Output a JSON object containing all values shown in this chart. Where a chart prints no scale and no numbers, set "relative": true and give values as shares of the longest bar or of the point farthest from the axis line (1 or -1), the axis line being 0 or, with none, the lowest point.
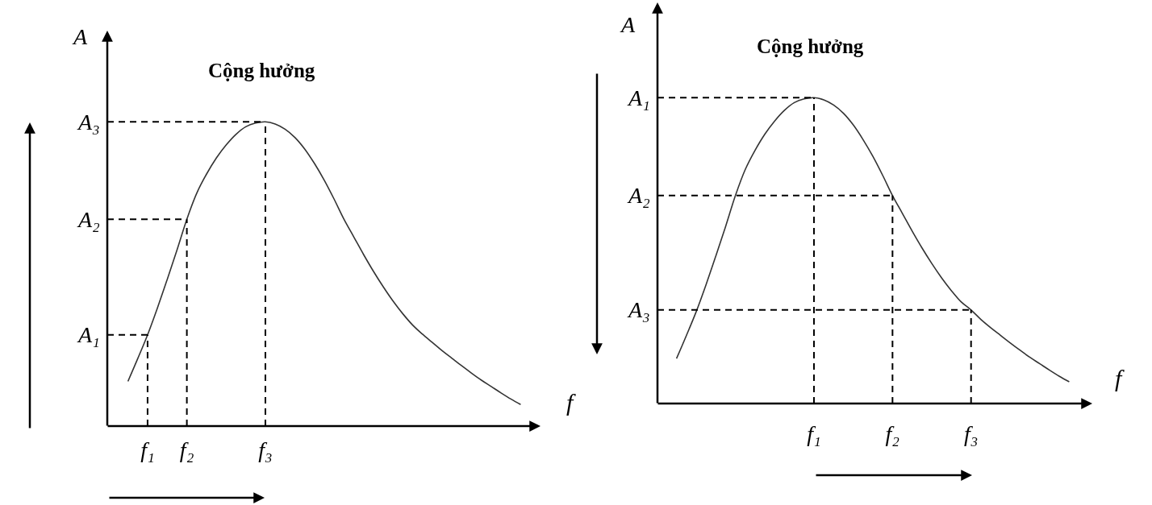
{
  "chart_data": [
    {
      "type": "line",
      "relative": true,
      "xlabel": "f",
      "ylabel": "A",
      "color": "#333333",
      "categories": [
        null,
        null,
        "f₁",
        null,
        null,
        null,
        "f₂",
        null,
        null,
        null,
        null,
        null,
        null,
        null,
        "f₃",
        null,
        null,
        null,
        null,
        null,
        null,
        null,
        null,
        null,
        null,
        null,
        null,
        null,
        null,
        null,
        null,
        null,
        null,
        null,
        null,
        null,
        null,
        null,
        null,
        null,
        null
      ],
      "values": [
        0.147,
        0.222,
        0.3,
        0.388,
        0.482,
        0.579,
        0.68,
        0.765,
        0.828,
        0.881,
        0.924,
        0.959,
        0.984,
        0.996,
        1,
        0.993,
        0.976,
        0.949,
        0.911,
        0.863,
        0.808,
        0.746,
        0.68,
        0.622,
        0.564,
        0.509,
        0.458,
        0.411,
        0.369,
        0.332,
        0.302,
        0.275,
        0.248,
        0.223,
        0.198,
        0.174,
        0.151,
        0.13,
        0.109,
        0.089,
        0.071
      ],
      "ref_lines": [
        {
          "axis": "y",
          "value": 0.3,
          "label": "A₁",
          "line_style": "dashed"
        },
        {
          "axis": "y",
          "value": 0.68,
          "label": "A₂",
          "line_style": "dashed"
        },
        {
          "axis": "y",
          "value": 1,
          "label": "A₃",
          "line_style": "dashed"
        },
        {
          "axis": "x",
          "value": "f₁",
          "line_style": "dashed"
        },
        {
          "axis": "x",
          "value": "f₂",
          "line_style": "dashed"
        },
        {
          "axis": "x",
          "value": "f₃",
          "line_style": "dashed"
        }
      ],
      "annotations": [
        {
          "text": "Cộng hưởng",
          "x": "f₃",
          "y": 1
        }
      ]
    },
    {
      "type": "line",
      "relative": true,
      "xlabel": "f",
      "ylabel": "A",
      "color": "#333333",
      "categories": [
        null,
        null,
        null,
        null,
        null,
        null,
        null,
        null,
        null,
        null,
        null,
        null,
        null,
        null,
        "f₁",
        null,
        null,
        null,
        null,
        null,
        null,
        null,
        "f₂",
        null,
        null,
        null,
        null,
        null,
        null,
        null,
        "f₃",
        null,
        null,
        null,
        null,
        null,
        null,
        null,
        null,
        null,
        null
      ],
      "values": [
        0.147,
        0.222,
        0.3,
        0.388,
        0.482,
        0.579,
        0.68,
        0.765,
        0.828,
        0.881,
        0.924,
        0.959,
        0.984,
        0.996,
        1,
        0.993,
        0.976,
        0.949,
        0.911,
        0.863,
        0.808,
        0.746,
        0.68,
        0.622,
        0.564,
        0.509,
        0.458,
        0.411,
        0.369,
        0.332,
        0.306,
        0.275,
        0.248,
        0.223,
        0.198,
        0.174,
        0.151,
        0.13,
        0.109,
        0.089,
        0.071
      ],
      "ref_lines": [
        {
          "axis": "y",
          "value": 1,
          "label": "A₁",
          "line_style": "dashed"
        },
        {
          "axis": "y",
          "value": 0.68,
          "label": "A₂",
          "line_style": "dashed"
        },
        {
          "axis": "y",
          "value": 0.306,
          "label": "A₃",
          "line_style": "dashed"
        },
        {
          "axis": "x",
          "value": "f₁",
          "line_style": "dashed"
        },
        {
          "axis": "x",
          "value": "f₂",
          "line_style": "dashed"
        },
        {
          "axis": "x",
          "value": "f₃",
          "line_style": "dashed"
        }
      ],
      "annotations": [
        {
          "text": "Cộng hưởng",
          "x": "f₁",
          "y": 1
        }
      ]
    }
  ]
}
